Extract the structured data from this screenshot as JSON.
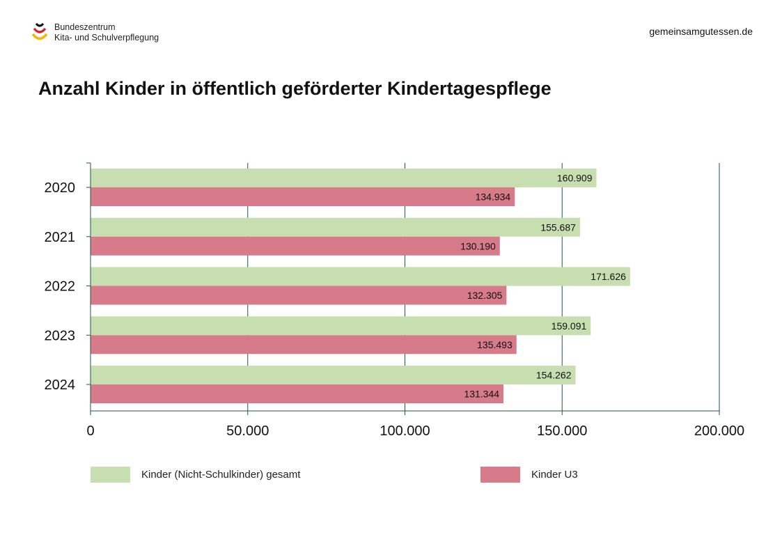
{
  "header": {
    "logo_line1": "Bundeszentrum",
    "logo_line2": "Kita- und Schulverpflegung",
    "site": "gemeinsamgutessen.de"
  },
  "chart_data": {
    "type": "bar",
    "orientation": "horizontal",
    "title": "Anzahl Kinder in öffentlich geförderter Kindertagespflege",
    "categories": [
      "2020",
      "2021",
      "2022",
      "2023",
      "2024"
    ],
    "series": [
      {
        "name": "Kinder (Nicht-Schulkinder) gesamt",
        "color": "#c6deb0",
        "values": [
          160909,
          155687,
          171626,
          159091,
          154262
        ],
        "labels": [
          "160.909",
          "155.687",
          "171.626",
          "159.091",
          "154.262"
        ]
      },
      {
        "name": "Kinder U3",
        "color": "#d77a89",
        "values": [
          134934,
          130190,
          132305,
          135493,
          131344
        ],
        "labels": [
          "134.934",
          "130.190",
          "132.305",
          "135.493",
          "131.344"
        ]
      }
    ],
    "xlim": [
      0,
      200000
    ],
    "xticks": [
      0,
      50000,
      100000,
      150000,
      200000
    ],
    "xtick_labels": [
      "0",
      "50.000",
      "100.000",
      "150.000",
      "200.000"
    ],
    "grid": true,
    "legend_position": "bottom",
    "axis_color": "#1e5a3c"
  }
}
